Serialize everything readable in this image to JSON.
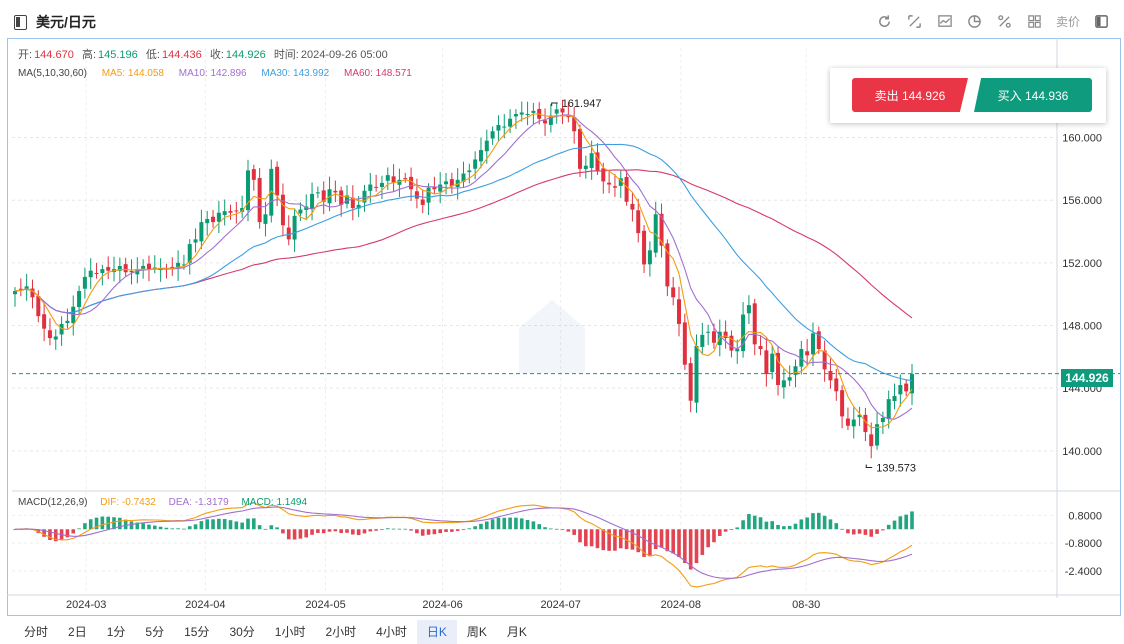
{
  "header": {
    "title": "美元/日元",
    "quote_label": "卖价"
  },
  "ohlc": {
    "open_label": "开:",
    "open": "144.670",
    "high_label": "高:",
    "high": "145.196",
    "low_label": "低:",
    "low": "144.436",
    "close_label": "收:",
    "close": "144.926",
    "time_label": "时间:",
    "time": "2024-09-26 05:00"
  },
  "ma_legend": {
    "title": "MA(5,10,30,60)",
    "ma5": "MA5: 144.058",
    "ma10": "MA10: 142.896",
    "ma30": "MA30: 143.992",
    "ma60": "MA60: 148.571"
  },
  "macd_legend": {
    "title": "MACD(12,26,9)",
    "dif": "DIF: -0.7432",
    "dea": "DEA: -1.3179",
    "macd": "MACD: 1.1494"
  },
  "trade": {
    "sell_label": "卖出 144.926",
    "buy_label": "买入 144.936"
  },
  "current_price": "144.926",
  "tabs": [
    "分时",
    "2日",
    "1分",
    "5分",
    "15分",
    "30分",
    "1小时",
    "2小时",
    "4小时",
    "日K",
    "周K",
    "月K"
  ],
  "active_tab": "日K",
  "colors": {
    "up": "#0a9b73",
    "down": "#e0303f",
    "ma5": "#f39c12",
    "ma10": "#a16fd0",
    "ma30": "#3c9fe0",
    "ma60": "#d63a6a"
  },
  "chart_data": {
    "type": "candlestick",
    "price_axis_ticks": [
      "160.000",
      "156.000",
      "152.000",
      "148.000",
      "144.000",
      "140.000"
    ],
    "price_axis_partial_tick": "0",
    "price_range": [
      137.5,
      163.8
    ],
    "macd_axis_ticks": [
      "0.8000",
      "-0.8000",
      "-2.4000"
    ],
    "macd_range": [
      -3.5,
      1.8
    ],
    "date_labels": [
      "2024-03",
      "2024-04",
      "2024-05",
      "2024-06",
      "2024-07",
      "2024-08",
      "08-30"
    ],
    "annotations": [
      {
        "text": "161.947",
        "type": "high",
        "price": 161.947
      },
      {
        "text": "139.573",
        "type": "low",
        "price": 139.573
      }
    ],
    "close_series": [
      150.2,
      150.3,
      150.5,
      149.8,
      148.6,
      147.8,
      147.2,
      147.3,
      148.1,
      148.3,
      149.2,
      150.2,
      151.1,
      151.5,
      151.3,
      151.6,
      151.5,
      151.6,
      151.8,
      151.4,
      151.4,
      151.6,
      151.8,
      151.6,
      151.7,
      151.6,
      151.6,
      151.7,
      152.0,
      151.9,
      153.2,
      153.5,
      154.6,
      154.8,
      154.6,
      155.2,
      155.3,
      155.2,
      155.3,
      155.5,
      157.9,
      157.3,
      154.6,
      155.1,
      158.0,
      156.3,
      154.4,
      153.5,
      155.0,
      155.4,
      155.6,
      156.4,
      156.5,
      155.9,
      156.7,
      156.5,
      155.7,
      156.3,
      155.5,
      155.7,
      156.6,
      157.0,
      156.8,
      157.1,
      157.6,
      157.1,
      157.3,
      157.4,
      156.7,
      156.1,
      155.7,
      156.8,
      156.7,
      157.0,
      157.2,
      156.9,
      157.3,
      157.7,
      157.9,
      158.6,
      159.2,
      159.8,
      160.4,
      160.8,
      160.7,
      161.2,
      161.5,
      161.6,
      161.5,
      161.7,
      161.2,
      160.9,
      161.4,
      161.8,
      161.6,
      161.3,
      160.4,
      158.0,
      158.2,
      159.0,
      157.9,
      157.2,
      157.0,
      156.8,
      157.4,
      155.9,
      155.4,
      153.9,
      151.9,
      152.8,
      155.1,
      153.1,
      150.5,
      149.8,
      148.1,
      145.5,
      143.2,
      146.7,
      147.4,
      147.6,
      146.9,
      147.6,
      147.2,
      146.4,
      146.5,
      148.7,
      149.3,
      146.8,
      146.5,
      144.9,
      146.2,
      144.2,
      144.5,
      144.7,
      145.4,
      146.5,
      146.1,
      147.5,
      146.5,
      145.2,
      144.5,
      143.8,
      142.2,
      141.6,
      142.0,
      142.3,
      141.2,
      140.3,
      141.7,
      142.1,
      143.3,
      143.5,
      144.2,
      143.8,
      144.9
    ]
  }
}
